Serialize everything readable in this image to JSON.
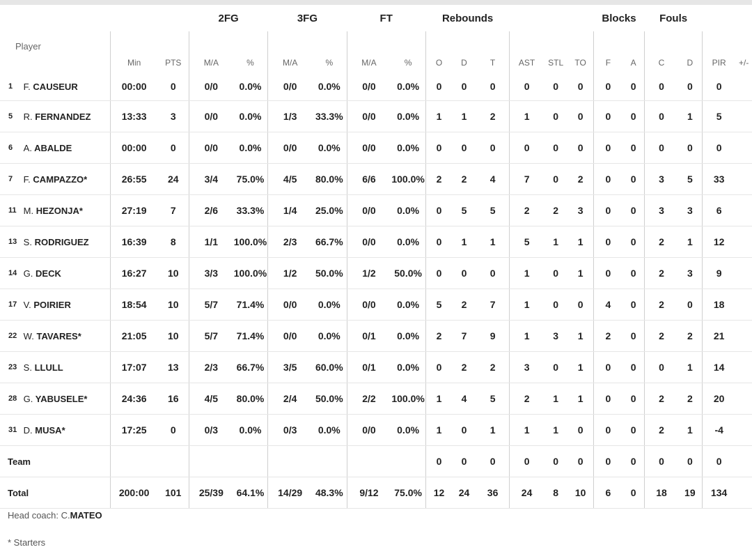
{
  "group_headers": {
    "fg2": "2FG",
    "fg3": "3FG",
    "ft": "FT",
    "rebounds": "Rebounds",
    "blocks": "Blocks",
    "fouls": "Fouls"
  },
  "columns": {
    "player": "Player",
    "min": "Min",
    "pts": "PTS",
    "fg2_ma": "M/A",
    "fg2_pct": "%",
    "fg3_ma": "M/A",
    "fg3_pct": "%",
    "ft_ma": "M/A",
    "ft_pct": "%",
    "reb_o": "O",
    "reb_d": "D",
    "reb_t": "T",
    "ast": "AST",
    "stl": "STL",
    "to": "TO",
    "blk_f": "F",
    "blk_a": "A",
    "foul_c": "C",
    "foul_d": "D",
    "pir": "PIR",
    "pm": "+/-"
  },
  "players": [
    {
      "num": "1",
      "init": "F.",
      "last": "CAUSEUR",
      "min": "00:00",
      "pts": "0",
      "fg2_ma": "0/0",
      "fg2_pct": "0.0%",
      "fg3_ma": "0/0",
      "fg3_pct": "0.0%",
      "ft_ma": "0/0",
      "ft_pct": "0.0%",
      "reb_o": "0",
      "reb_d": "0",
      "reb_t": "0",
      "ast": "0",
      "stl": "0",
      "to": "0",
      "blk_f": "0",
      "blk_a": "0",
      "foul_c": "0",
      "foul_d": "0",
      "pir": "0"
    },
    {
      "num": "5",
      "init": "R.",
      "last": "FERNANDEZ",
      "min": "13:33",
      "pts": "3",
      "fg2_ma": "0/0",
      "fg2_pct": "0.0%",
      "fg3_ma": "1/3",
      "fg3_pct": "33.3%",
      "ft_ma": "0/0",
      "ft_pct": "0.0%",
      "reb_o": "1",
      "reb_d": "1",
      "reb_t": "2",
      "ast": "1",
      "stl": "0",
      "to": "0",
      "blk_f": "0",
      "blk_a": "0",
      "foul_c": "0",
      "foul_d": "1",
      "pir": "5"
    },
    {
      "num": "6",
      "init": "A.",
      "last": "ABALDE",
      "min": "00:00",
      "pts": "0",
      "fg2_ma": "0/0",
      "fg2_pct": "0.0%",
      "fg3_ma": "0/0",
      "fg3_pct": "0.0%",
      "ft_ma": "0/0",
      "ft_pct": "0.0%",
      "reb_o": "0",
      "reb_d": "0",
      "reb_t": "0",
      "ast": "0",
      "stl": "0",
      "to": "0",
      "blk_f": "0",
      "blk_a": "0",
      "foul_c": "0",
      "foul_d": "0",
      "pir": "0"
    },
    {
      "num": "7",
      "init": "F.",
      "last": "CAMPAZZO*",
      "min": "26:55",
      "pts": "24",
      "fg2_ma": "3/4",
      "fg2_pct": "75.0%",
      "fg3_ma": "4/5",
      "fg3_pct": "80.0%",
      "ft_ma": "6/6",
      "ft_pct": "100.0%",
      "reb_o": "2",
      "reb_d": "2",
      "reb_t": "4",
      "ast": "7",
      "stl": "0",
      "to": "2",
      "blk_f": "0",
      "blk_a": "0",
      "foul_c": "3",
      "foul_d": "5",
      "pir": "33"
    },
    {
      "num": "11",
      "init": "M.",
      "last": "HEZONJA*",
      "min": "27:19",
      "pts": "7",
      "fg2_ma": "2/6",
      "fg2_pct": "33.3%",
      "fg3_ma": "1/4",
      "fg3_pct": "25.0%",
      "ft_ma": "0/0",
      "ft_pct": "0.0%",
      "reb_o": "0",
      "reb_d": "5",
      "reb_t": "5",
      "ast": "2",
      "stl": "2",
      "to": "3",
      "blk_f": "0",
      "blk_a": "0",
      "foul_c": "3",
      "foul_d": "3",
      "pir": "6"
    },
    {
      "num": "13",
      "init": "S.",
      "last": "RODRIGUEZ",
      "min": "16:39",
      "pts": "8",
      "fg2_ma": "1/1",
      "fg2_pct": "100.0%",
      "fg3_ma": "2/3",
      "fg3_pct": "66.7%",
      "ft_ma": "0/0",
      "ft_pct": "0.0%",
      "reb_o": "0",
      "reb_d": "1",
      "reb_t": "1",
      "ast": "5",
      "stl": "1",
      "to": "1",
      "blk_f": "0",
      "blk_a": "0",
      "foul_c": "2",
      "foul_d": "1",
      "pir": "12"
    },
    {
      "num": "14",
      "init": "G.",
      "last": "DECK",
      "min": "16:27",
      "pts": "10",
      "fg2_ma": "3/3",
      "fg2_pct": "100.0%",
      "fg3_ma": "1/2",
      "fg3_pct": "50.0%",
      "ft_ma": "1/2",
      "ft_pct": "50.0%",
      "reb_o": "0",
      "reb_d": "0",
      "reb_t": "0",
      "ast": "1",
      "stl": "0",
      "to": "1",
      "blk_f": "0",
      "blk_a": "0",
      "foul_c": "2",
      "foul_d": "3",
      "pir": "9"
    },
    {
      "num": "17",
      "init": "V.",
      "last": "POIRIER",
      "min": "18:54",
      "pts": "10",
      "fg2_ma": "5/7",
      "fg2_pct": "71.4%",
      "fg3_ma": "0/0",
      "fg3_pct": "0.0%",
      "ft_ma": "0/0",
      "ft_pct": "0.0%",
      "reb_o": "5",
      "reb_d": "2",
      "reb_t": "7",
      "ast": "1",
      "stl": "0",
      "to": "0",
      "blk_f": "4",
      "blk_a": "0",
      "foul_c": "2",
      "foul_d": "0",
      "pir": "18"
    },
    {
      "num": "22",
      "init": "W.",
      "last": "TAVARES*",
      "min": "21:05",
      "pts": "10",
      "fg2_ma": "5/7",
      "fg2_pct": "71.4%",
      "fg3_ma": "0/0",
      "fg3_pct": "0.0%",
      "ft_ma": "0/1",
      "ft_pct": "0.0%",
      "reb_o": "2",
      "reb_d": "7",
      "reb_t": "9",
      "ast": "1",
      "stl": "3",
      "to": "1",
      "blk_f": "2",
      "blk_a": "0",
      "foul_c": "2",
      "foul_d": "2",
      "pir": "21"
    },
    {
      "num": "23",
      "init": "S.",
      "last": "LLULL",
      "min": "17:07",
      "pts": "13",
      "fg2_ma": "2/3",
      "fg2_pct": "66.7%",
      "fg3_ma": "3/5",
      "fg3_pct": "60.0%",
      "ft_ma": "0/1",
      "ft_pct": "0.0%",
      "reb_o": "0",
      "reb_d": "2",
      "reb_t": "2",
      "ast": "3",
      "stl": "0",
      "to": "1",
      "blk_f": "0",
      "blk_a": "0",
      "foul_c": "0",
      "foul_d": "1",
      "pir": "14"
    },
    {
      "num": "28",
      "init": "G.",
      "last": "YABUSELE*",
      "min": "24:36",
      "pts": "16",
      "fg2_ma": "4/5",
      "fg2_pct": "80.0%",
      "fg3_ma": "2/4",
      "fg3_pct": "50.0%",
      "ft_ma": "2/2",
      "ft_pct": "100.0%",
      "reb_o": "1",
      "reb_d": "4",
      "reb_t": "5",
      "ast": "2",
      "stl": "1",
      "to": "1",
      "blk_f": "0",
      "blk_a": "0",
      "foul_c": "2",
      "foul_d": "2",
      "pir": "20"
    },
    {
      "num": "31",
      "init": "D.",
      "last": "MUSA*",
      "min": "17:25",
      "pts": "0",
      "fg2_ma": "0/3",
      "fg2_pct": "0.0%",
      "fg3_ma": "0/3",
      "fg3_pct": "0.0%",
      "ft_ma": "0/0",
      "ft_pct": "0.0%",
      "reb_o": "1",
      "reb_d": "0",
      "reb_t": "1",
      "ast": "1",
      "stl": "1",
      "to": "0",
      "blk_f": "0",
      "blk_a": "0",
      "foul_c": "2",
      "foul_d": "1",
      "pir": "-4"
    }
  ],
  "team_row": {
    "label": "Team",
    "reb_o": "0",
    "reb_d": "0",
    "reb_t": "0",
    "ast": "0",
    "stl": "0",
    "to": "0",
    "blk_f": "0",
    "blk_a": "0",
    "foul_c": "0",
    "foul_d": "0",
    "pir": "0"
  },
  "total_row": {
    "label": "Total",
    "min": "200:00",
    "pts": "101",
    "fg2_ma": "25/39",
    "fg2_pct": "64.1%",
    "fg3_ma": "14/29",
    "fg3_pct": "48.3%",
    "ft_ma": "9/12",
    "ft_pct": "75.0%",
    "reb_o": "12",
    "reb_d": "24",
    "reb_t": "36",
    "ast": "24",
    "stl": "8",
    "to": "10",
    "blk_f": "6",
    "blk_a": "0",
    "foul_c": "18",
    "foul_d": "19",
    "pir": "134"
  },
  "footer": {
    "coach_label": "Head coach:",
    "coach_init": "C.",
    "coach_last": "MATEO",
    "starters_note": "* Starters"
  }
}
